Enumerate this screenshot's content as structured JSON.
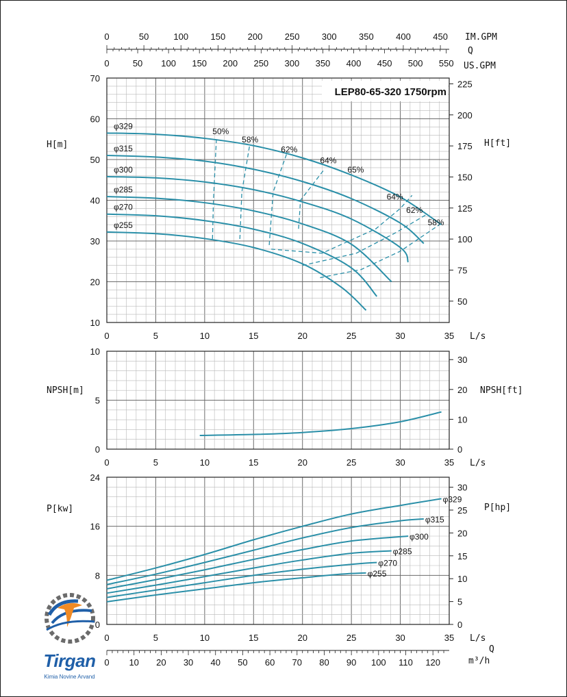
{
  "chart_data": [
    {
      "type": "line",
      "title": "LEP80-65-320 1750rpm",
      "ylabel": "H[m]",
      "ylabel_right": "H[ft]",
      "xlabel": "L/s",
      "xlim": [
        0,
        35
      ],
      "ylim": [
        10,
        70
      ],
      "x_ticks": [
        0,
        5,
        10,
        15,
        20,
        25,
        30,
        35
      ],
      "y_ticks": [
        10,
        20,
        30,
        40,
        50,
        60,
        70
      ],
      "y2_ticks": [
        50,
        75,
        100,
        125,
        150,
        175,
        200,
        225
      ],
      "top_axes": [
        {
          "label": "IM.GPM",
          "ticks": [
            0,
            50,
            100,
            150,
            200,
            250,
            300,
            350,
            400,
            450
          ]
        },
        {
          "label": "Q",
          "ticks": []
        },
        {
          "label": "US.GPM",
          "ticks": [
            0,
            50,
            100,
            150,
            200,
            250,
            300,
            350,
            400,
            450,
            500,
            550
          ]
        }
      ],
      "series": [
        {
          "name": "φ329",
          "x": [
            0,
            5,
            10,
            15,
            20,
            25,
            30,
            34.2
          ],
          "y": [
            56.5,
            56.2,
            55.2,
            53.4,
            50.4,
            46.2,
            40.8,
            34.0
          ]
        },
        {
          "name": "φ315",
          "x": [
            0,
            5,
            10,
            15,
            20,
            25,
            30,
            32.4
          ],
          "y": [
            51.0,
            50.6,
            49.6,
            47.6,
            44.6,
            40.4,
            34.4,
            29.4
          ]
        },
        {
          "name": "φ300",
          "x": [
            0,
            5,
            10,
            15,
            20,
            25,
            30,
            30.8
          ],
          "y": [
            45.8,
            45.5,
            44.5,
            42.6,
            39.6,
            35.4,
            28.4,
            24.8
          ]
        },
        {
          "name": "φ285",
          "x": [
            0,
            5,
            10,
            15,
            20,
            25,
            29.1
          ],
          "y": [
            40.9,
            40.5,
            39.4,
            37.4,
            34.2,
            29.2,
            20.0
          ]
        },
        {
          "name": "φ270",
          "x": [
            0,
            5,
            10,
            15,
            20,
            25,
            27.6
          ],
          "y": [
            36.6,
            36.2,
            35.0,
            32.9,
            29.4,
            23.4,
            16.4
          ]
        },
        {
          "name": "φ255",
          "x": [
            0,
            5,
            10,
            15,
            20,
            24,
            26.5
          ],
          "y": [
            32.2,
            31.8,
            30.6,
            28.4,
            24.4,
            18.6,
            13.0
          ]
        }
      ],
      "efficiency_labels": [
        "50%",
        "58%",
        "62%",
        "64%",
        "65%",
        "64%",
        "62%",
        "58%"
      ]
    },
    {
      "type": "line",
      "ylabel": "NPSH[m]",
      "ylabel_right": "NPSH[ft]",
      "xlabel": "L/s",
      "xlim": [
        0,
        35
      ],
      "ylim": [
        0,
        10
      ],
      "x_ticks": [
        0,
        5,
        10,
        15,
        20,
        25,
        30,
        35
      ],
      "y_ticks": [
        0,
        5,
        10
      ],
      "y2_ticks": [
        0,
        10,
        20,
        30
      ],
      "series": [
        {
          "x": [
            9.5,
            15,
            20,
            25,
            30,
            34.2
          ],
          "y": [
            1.4,
            1.5,
            1.7,
            2.1,
            2.8,
            3.8
          ]
        }
      ]
    },
    {
      "type": "line",
      "ylabel": "P[kw]",
      "ylabel_right": "P[hp]",
      "xlabel": "L/s",
      "x2label": "m³/h",
      "qlabel": "Q",
      "xlim": [
        0,
        35
      ],
      "ylim": [
        0,
        24
      ],
      "x_ticks": [
        0,
        5,
        10,
        15,
        20,
        25,
        30,
        35
      ],
      "x2_ticks": [
        0,
        10,
        20,
        30,
        40,
        50,
        60,
        70,
        80,
        90,
        100,
        110,
        120
      ],
      "y_ticks": [
        0,
        8,
        16,
        24
      ],
      "y2_ticks": [
        0,
        5,
        10,
        15,
        20,
        25,
        30
      ],
      "series": [
        {
          "name": "φ329",
          "x": [
            0,
            5,
            10,
            15,
            20,
            25,
            30,
            34.2
          ],
          "y": [
            7.2,
            9.2,
            11.4,
            13.8,
            16.0,
            18.0,
            19.4,
            20.5
          ]
        },
        {
          "name": "φ315",
          "x": [
            0,
            5,
            10,
            15,
            20,
            25,
            30,
            32.4
          ],
          "y": [
            6.5,
            8.2,
            10.1,
            12.1,
            14.1,
            15.8,
            16.9,
            17.2
          ]
        },
        {
          "name": "φ300",
          "x": [
            0,
            5,
            10,
            15,
            20,
            25,
            30.8
          ],
          "y": [
            5.8,
            7.3,
            8.9,
            10.6,
            12.2,
            13.6,
            14.4
          ]
        },
        {
          "name": "φ285",
          "x": [
            0,
            5,
            10,
            15,
            20,
            25,
            29.1
          ],
          "y": [
            5.1,
            6.4,
            7.8,
            9.2,
            10.5,
            11.6,
            12.0
          ]
        },
        {
          "name": "φ270",
          "x": [
            0,
            5,
            10,
            15,
            20,
            25,
            27.6
          ],
          "y": [
            4.4,
            5.6,
            6.8,
            8.0,
            9.0,
            9.8,
            10.1
          ]
        },
        {
          "name": "φ255",
          "x": [
            0,
            5,
            10,
            15,
            20,
            24,
            26.5
          ],
          "y": [
            3.7,
            4.8,
            5.8,
            6.8,
            7.6,
            8.2,
            8.4
          ]
        }
      ]
    }
  ],
  "colors": {
    "curve": "#2a8fa8",
    "grid_major": "#6b6b6b",
    "grid_minor": "#b8b8b8"
  },
  "logo": {
    "name": "Tirgan",
    "subtitle": "Kimia Novine Arvand"
  }
}
